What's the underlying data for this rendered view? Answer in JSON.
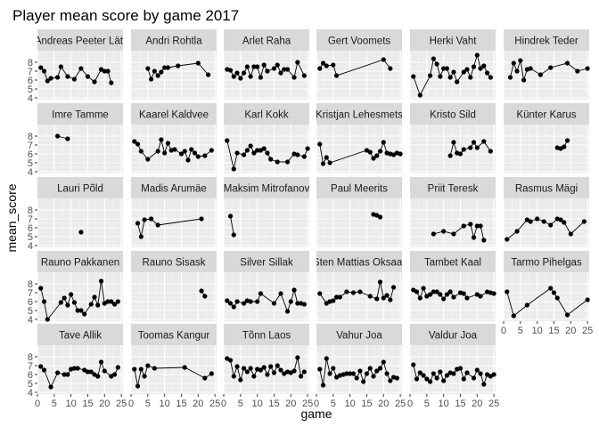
{
  "chart_data": {
    "type": "scatter",
    "title": "Player mean score by game 2017",
    "xlabel": "game",
    "ylabel": "mean_score",
    "xlim": [
      0,
      25.5
    ],
    "ylim": [
      3.8,
      9.3
    ],
    "x_ticks": [
      0,
      5,
      10,
      15,
      20,
      25
    ],
    "y_ticks": [
      4,
      5,
      6,
      7,
      8
    ],
    "grid": true,
    "facet_cols": 6,
    "colors": {
      "panel_bg": "#ebebeb",
      "strip_bg": "#d9d9d9",
      "grid_major": "#ffffff",
      "grid_minor": "#f5f5f5",
      "point": "#000000"
    },
    "panels": [
      {
        "name": "Andreas Peeter Lätt",
        "x": [
          1,
          2,
          3,
          4,
          6,
          7,
          9,
          11,
          13,
          15,
          17,
          19,
          20,
          21,
          22
        ],
        "y": [
          7.4,
          7.0,
          5.9,
          6.2,
          6.3,
          7.5,
          6.4,
          6.1,
          7.3,
          6.4,
          5.8,
          7.2,
          7.0,
          7.0,
          5.7
        ]
      },
      {
        "name": "Andri Rohtla",
        "x": [
          5,
          6,
          7,
          8,
          9,
          10,
          11,
          14,
          20,
          23
        ],
        "y": [
          7.3,
          6.1,
          7.0,
          6.5,
          6.9,
          7.4,
          7.4,
          7.6,
          7.9,
          6.6
        ]
      },
      {
        "name": "Arlet Raha",
        "x": [
          1,
          2,
          3,
          4,
          5,
          6,
          7,
          8,
          9,
          10,
          11,
          12,
          13,
          15,
          16,
          17,
          18,
          19,
          21,
          22,
          24
        ],
        "y": [
          7.2,
          7.1,
          6.4,
          6.8,
          6.2,
          6.8,
          7.5,
          6.4,
          7.5,
          7.5,
          6.3,
          7.7,
          7.0,
          7.3,
          7.7,
          6.8,
          7.2,
          7.2,
          6.3,
          8.0,
          6.5
        ]
      },
      {
        "name": "Gert Voomets",
        "x": [
          1,
          2,
          3,
          5,
          6,
          20,
          22
        ],
        "y": [
          7.3,
          7.9,
          7.6,
          7.7,
          6.5,
          8.3,
          7.3
        ]
      },
      {
        "name": "Herki Vaht",
        "x": [
          1,
          3,
          6,
          7,
          8,
          9,
          10,
          11,
          12,
          13,
          14,
          16,
          17,
          18,
          19,
          20,
          21,
          22,
          23,
          24
        ],
        "y": [
          6.4,
          4.3,
          6.5,
          8.4,
          7.8,
          6.4,
          7.3,
          7.3,
          6.3,
          6.9,
          5.8,
          6.9,
          7.2,
          6.3,
          7.5,
          8.8,
          7.3,
          7.6,
          6.8,
          6.3
        ]
      },
      {
        "name": "Hindrek Teder",
        "x": [
          2,
          3,
          4,
          5,
          6,
          7,
          8,
          11,
          14,
          19,
          22,
          25
        ],
        "y": [
          6.3,
          7.9,
          7.0,
          8.2,
          6.0,
          7.2,
          7.3,
          6.6,
          7.4,
          7.9,
          7.0,
          7.3
        ]
      },
      {
        "name": "Imre Tamme",
        "x": [
          6,
          9
        ],
        "y": [
          8.0,
          7.7
        ]
      },
      {
        "name": "Kaarel Kaldvee",
        "x": [
          1,
          2,
          3,
          5,
          8,
          9,
          10,
          11,
          12,
          13,
          15,
          16,
          17,
          18,
          19,
          20,
          22,
          24
        ],
        "y": [
          7.4,
          7.1,
          6.3,
          5.4,
          6.3,
          7.6,
          6.1,
          7.2,
          6.4,
          6.5,
          6.0,
          6.3,
          5.3,
          6.5,
          6.1,
          5.7,
          5.8,
          6.4
        ]
      },
      {
        "name": "Karl Kokk",
        "x": [
          1,
          3,
          4,
          6,
          7,
          8,
          9,
          10,
          11,
          12,
          13,
          14,
          16,
          19,
          21,
          22,
          24,
          25
        ],
        "y": [
          7.5,
          4.3,
          6.1,
          5.9,
          6.4,
          6.9,
          6.1,
          6.4,
          6.4,
          6.6,
          6.1,
          5.4,
          5.1,
          5.1,
          6.0,
          5.9,
          5.7,
          6.6
        ]
      },
      {
        "name": "Kristjan Lehesmets",
        "x": [
          1,
          2,
          3,
          4,
          15,
          16,
          17,
          18,
          19,
          20,
          21,
          22,
          23,
          24,
          25
        ],
        "y": [
          7.1,
          4.9,
          5.6,
          5.0,
          6.4,
          6.2,
          5.5,
          5.8,
          6.3,
          7.3,
          6.1,
          6.0,
          5.9,
          6.1,
          6.0
        ]
      },
      {
        "name": "Kristo Sild",
        "x": [
          12,
          13,
          14,
          15,
          16,
          18,
          19,
          20,
          22,
          24
        ],
        "y": [
          5.8,
          7.3,
          6.1,
          6.0,
          6.5,
          6.7,
          7.3,
          6.7,
          7.4,
          6.3
        ]
      },
      {
        "name": "Künter Karus",
        "x": [
          16,
          17,
          18,
          19
        ],
        "y": [
          6.7,
          6.6,
          6.8,
          7.5
        ]
      },
      {
        "name": "Lauri Põld",
        "x": [
          13
        ],
        "y": [
          5.5
        ]
      },
      {
        "name": "Madis Arumäe",
        "x": [
          2,
          3,
          4,
          6,
          8,
          21
        ],
        "y": [
          6.5,
          5.0,
          6.9,
          7.0,
          6.3,
          7.0
        ]
      },
      {
        "name": "Maksim Mitrofanov",
        "x": [
          2,
          3
        ],
        "y": [
          7.3,
          5.2
        ]
      },
      {
        "name": "Paul Meerits",
        "x": [
          17,
          18,
          19
        ],
        "y": [
          7.5,
          7.4,
          7.2
        ]
      },
      {
        "name": "Priit Teresk",
        "x": [
          7,
          10,
          13,
          16,
          18,
          19,
          20,
          21,
          22
        ],
        "y": [
          5.3,
          5.6,
          5.3,
          6.2,
          6.4,
          4.9,
          6.2,
          6.2,
          4.6
        ]
      },
      {
        "name": "Rasmus Mägi",
        "x": [
          1,
          4,
          7,
          8,
          10,
          12,
          14,
          16,
          17,
          18,
          20,
          24
        ],
        "y": [
          4.7,
          5.6,
          6.9,
          6.7,
          7.0,
          6.7,
          6.3,
          7.0,
          6.9,
          6.6,
          5.3,
          6.7
        ]
      },
      {
        "name": "Rauno Pakkanen",
        "x": [
          1,
          2,
          3,
          7,
          8,
          9,
          10,
          11,
          12,
          13,
          14,
          16,
          17,
          18,
          19,
          20,
          21,
          22,
          23,
          24
        ],
        "y": [
          7.5,
          6.0,
          4.0,
          5.9,
          6.4,
          5.6,
          6.8,
          5.9,
          5.0,
          5.0,
          4.6,
          5.7,
          6.5,
          5.6,
          8.3,
          5.8,
          6.0,
          6.0,
          5.7,
          6.0
        ]
      },
      {
        "name": "Rauno Sisask",
        "x": [
          21,
          22
        ],
        "y": [
          7.2,
          6.6
        ]
      },
      {
        "name": "Silver Sillak",
        "x": [
          1,
          2,
          3,
          4,
          6,
          7,
          8,
          10,
          11,
          15,
          17,
          19,
          20,
          21,
          22,
          23,
          24
        ],
        "y": [
          6.1,
          5.8,
          5.4,
          6.0,
          5.8,
          6.1,
          6.0,
          6.0,
          6.9,
          5.8,
          6.9,
          4.9,
          6.0,
          7.3,
          5.8,
          5.8,
          5.7
        ]
      },
      {
        "name": "Sten Mattias Oksaar",
        "x": [
          1,
          3,
          4,
          5,
          6,
          7,
          9,
          11,
          13,
          16,
          18,
          19,
          20,
          21,
          22,
          23
        ],
        "y": [
          6.9,
          5.8,
          6.0,
          6.1,
          6.5,
          6.5,
          7.1,
          7.0,
          7.1,
          6.6,
          6.3,
          8.2,
          6.4,
          6.7,
          6.2,
          7.6
        ]
      },
      {
        "name": "Tambet Kaal",
        "x": [
          1,
          2,
          3,
          4,
          5,
          6,
          7,
          8,
          9,
          10,
          11,
          12,
          13,
          15,
          16,
          17,
          20,
          21,
          23,
          24,
          25
        ],
        "y": [
          7.3,
          7.1,
          6.4,
          7.5,
          6.6,
          6.8,
          7.1,
          7.1,
          6.8,
          6.3,
          6.8,
          7.1,
          6.5,
          7.0,
          6.9,
          6.4,
          6.8,
          6.6,
          7.1,
          7.0,
          6.9
        ]
      },
      {
        "name": "Tarmo Pihelgas",
        "x": [
          1,
          3,
          7,
          14,
          15,
          16,
          19,
          25
        ],
        "y": [
          7.1,
          4.4,
          5.6,
          7.5,
          7.0,
          6.4,
          4.5,
          6.2
        ]
      },
      {
        "name": "Tave Allik",
        "x": [
          1,
          2,
          4,
          6,
          8,
          9,
          10,
          11,
          12,
          14,
          15,
          16,
          17,
          18,
          19,
          20,
          22,
          23,
          24
        ],
        "y": [
          6.9,
          6.5,
          4.6,
          6.2,
          6.0,
          6.0,
          6.6,
          6.7,
          6.7,
          6.5,
          6.3,
          6.3,
          6.0,
          5.8,
          7.4,
          6.4,
          5.8,
          6.0,
          6.8
        ]
      },
      {
        "name": "Toomas Kangur",
        "x": [
          1,
          2,
          3,
          4,
          5,
          7,
          16,
          22,
          24
        ],
        "y": [
          6.6,
          4.7,
          6.6,
          5.8,
          7.0,
          6.7,
          6.8,
          5.6,
          6.1
        ]
      },
      {
        "name": "Tõnn Laos",
        "x": [
          1,
          2,
          3,
          4,
          5,
          6,
          7,
          8,
          9,
          10,
          11,
          12,
          13,
          14,
          15,
          16,
          17,
          18,
          19,
          20,
          21,
          22,
          23,
          24
        ],
        "y": [
          7.8,
          7.6,
          5.8,
          6.9,
          5.4,
          6.7,
          6.3,
          6.7,
          5.8,
          6.6,
          6.5,
          6.8,
          6.0,
          6.9,
          6.2,
          7.0,
          6.5,
          6.1,
          6.3,
          6.2,
          6.4,
          7.9,
          5.8,
          6.3
        ]
      },
      {
        "name": "Vahur Joa",
        "x": [
          1,
          2,
          3,
          4,
          5,
          6,
          7,
          8,
          9,
          10,
          11,
          12,
          13,
          14,
          15,
          16,
          17,
          18,
          19,
          20,
          21,
          22,
          23,
          24
        ],
        "y": [
          6.6,
          4.8,
          7.8,
          6.1,
          6.7,
          5.7,
          5.9,
          6.0,
          6.1,
          6.1,
          6.1,
          5.6,
          6.4,
          5.2,
          6.1,
          6.7,
          5.8,
          6.4,
          6.7,
          7.4,
          6.1,
          5.3,
          5.7,
          5.6
        ]
      },
      {
        "name": "Valdur Joa",
        "x": [
          1,
          2,
          3,
          4,
          5,
          6,
          7,
          8,
          9,
          10,
          11,
          12,
          13,
          14,
          15,
          16,
          17,
          19,
          20,
          21,
          22,
          23,
          24,
          25
        ],
        "y": [
          7.1,
          5.5,
          6.2,
          5.9,
          5.5,
          5.2,
          6.1,
          5.6,
          6.3,
          5.3,
          5.9,
          6.2,
          6.1,
          6.6,
          6.7,
          5.5,
          6.2,
          5.6,
          6.5,
          6.1,
          4.9,
          6.0,
          5.8,
          6.0
        ]
      }
    ]
  }
}
